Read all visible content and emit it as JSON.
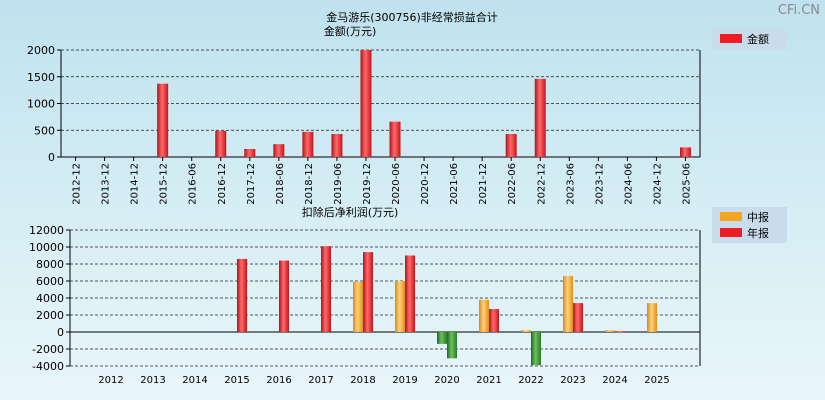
{
  "watermark": "CFi.CN",
  "colors": {
    "annual": "#ee1c24",
    "interim": "#f5a623",
    "negative": "#3a8a2e"
  },
  "chart_data": [
    {
      "type": "bar",
      "title": "金马游乐(300756)非经常损益合计",
      "subtitle": "金额(万元)",
      "ylim": [
        0,
        2000
      ],
      "yticks": [
        0,
        500,
        1000,
        1500,
        2000
      ],
      "grid": true,
      "legend": {
        "placement": "top-right",
        "entries": [
          "金额"
        ]
      },
      "categories": [
        "2012-12",
        "2013-12",
        "2014-12",
        "2015-12",
        "2016-06",
        "2016-12",
        "2017-12",
        "2018-06",
        "2018-12",
        "2019-06",
        "2019-12",
        "2020-06",
        "2020-12",
        "2021-06",
        "2021-12",
        "2022-06",
        "2022-12",
        "2023-06",
        "2023-12",
        "2024-06",
        "2024-12",
        "2025-06"
      ],
      "series": [
        {
          "name": "金额",
          "values": [
            null,
            null,
            null,
            1370,
            null,
            490,
            150,
            240,
            470,
            430,
            2000,
            660,
            null,
            null,
            null,
            430,
            1460,
            null,
            null,
            null,
            null,
            180
          ]
        }
      ]
    },
    {
      "type": "bar",
      "title": "扣除后净利润(万元)",
      "ylim": [
        -4000,
        12000
      ],
      "yticks": [
        -4000,
        -2000,
        0,
        2000,
        4000,
        6000,
        8000,
        10000,
        12000
      ],
      "grid": true,
      "legend": {
        "placement": "top-right",
        "entries": [
          "中报",
          "年报"
        ]
      },
      "categories": [
        "2012",
        "2013",
        "2014",
        "2015",
        "2016",
        "2017",
        "2018",
        "2019",
        "2020",
        "2021",
        "2022",
        "2023",
        "2024",
        "2025"
      ],
      "series": [
        {
          "name": "中报",
          "values": [
            null,
            null,
            null,
            null,
            null,
            null,
            5900,
            6000,
            -1400,
            3800,
            200,
            6600,
            200,
            3400
          ]
        },
        {
          "name": "年报",
          "values": [
            null,
            null,
            null,
            8600,
            8400,
            10100,
            9400,
            9000,
            -3100,
            2700,
            -3900,
            3400,
            100,
            null
          ]
        }
      ]
    }
  ]
}
